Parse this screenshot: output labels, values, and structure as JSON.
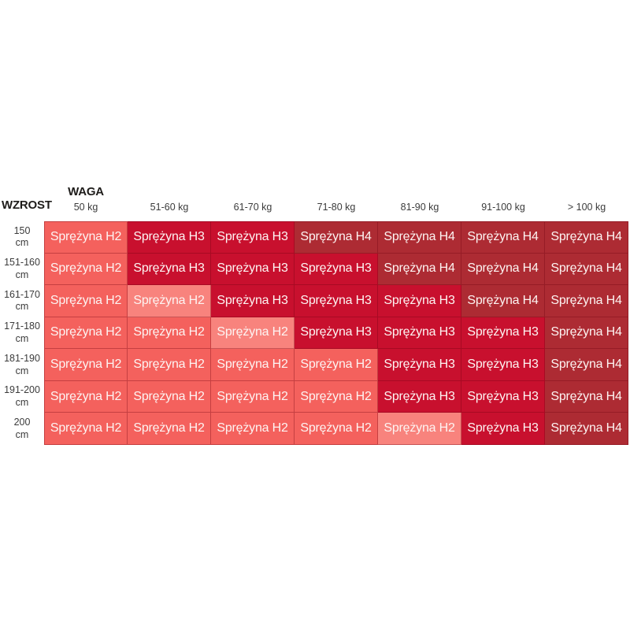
{
  "chart_data": {
    "type": "heatmap",
    "axis_labels": {
      "weight": "WAGA",
      "height": "WZROST"
    },
    "columns": [
      "50 kg",
      "51-60 kg",
      "61-70 kg",
      "71-80 kg",
      "81-90 kg",
      "91-100 kg",
      "> 100 kg"
    ],
    "rows": [
      {
        "value": "150",
        "unit": "cm"
      },
      {
        "value": "151-160",
        "unit": "cm"
      },
      {
        "value": "161-170",
        "unit": "cm"
      },
      {
        "value": "171-180",
        "unit": "cm"
      },
      {
        "value": "181-190",
        "unit": "cm"
      },
      {
        "value": "191-200",
        "unit": "cm"
      },
      {
        "value": "200",
        "unit": "cm"
      }
    ],
    "cell_label_prefix": "Sprężyna",
    "springs": [
      [
        "H2",
        "H3",
        "H3",
        "H4",
        "H4",
        "H4",
        "H4"
      ],
      [
        "H2",
        "H3",
        "H3",
        "H3",
        "H4",
        "H4",
        "H4"
      ],
      [
        "H2",
        "H2",
        "H3",
        "H3",
        "H3",
        "H4",
        "H4"
      ],
      [
        "H2",
        "H2",
        "H2",
        "H3",
        "H3",
        "H3",
        "H4"
      ],
      [
        "H2",
        "H2",
        "H2",
        "H2",
        "H3",
        "H3",
        "H4"
      ],
      [
        "H2",
        "H2",
        "H2",
        "H2",
        "H3",
        "H3",
        "H4"
      ],
      [
        "H2",
        "H2",
        "H2",
        "H2",
        "H2",
        "H3",
        "H4"
      ]
    ],
    "light_cells": [
      [
        2,
        1
      ],
      [
        3,
        2
      ],
      [
        6,
        4
      ]
    ],
    "colors": {
      "H2": "#f4615d",
      "H2_light": "#f8837d",
      "H3": "#c8102e",
      "H4": "#ad2b33",
      "cell_text": "#fdf4f2",
      "header_text": "#1e1c1a",
      "label_text": "#3b3b3b",
      "grid_line": "rgba(110,0,15,0.35)",
      "background": "#ffffff"
    }
  }
}
